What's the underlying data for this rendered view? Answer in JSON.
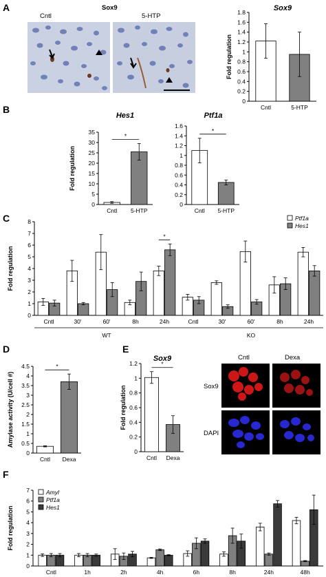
{
  "panels": {
    "A": "A",
    "B": "B",
    "C": "C",
    "D": "D",
    "E": "E",
    "F": "F"
  },
  "micrographs_A": {
    "title": "Sox9",
    "left_label": "Cntl",
    "right_label": "5-HTP"
  },
  "micrographs_E": {
    "col1": "Cntl",
    "col2": "Dexa",
    "row1": "Sox9",
    "row2": "DAPI"
  },
  "colors": {
    "white_bar": "#ffffff",
    "gray_bar": "#808080",
    "dark_bar": "#3a3a3a",
    "tissue_bg": "#c6cfe0",
    "nuclei": "#5a6fb0",
    "red_stain": "#e02020",
    "blue_stain": "#2a2ad8"
  },
  "chart_data": [
    {
      "id": "A",
      "type": "bar",
      "title": "Sox9",
      "ylabel": "Fold regulation",
      "ylim": [
        0,
        1.8
      ],
      "yticks": [
        "0",
        "0.2",
        "0.4",
        "0.6",
        "0.8",
        "1",
        "1.2",
        "1.4",
        "1.6",
        "1.8"
      ],
      "categories": [
        "Cntl",
        "5-HTP"
      ],
      "values": [
        1.22,
        0.95
      ],
      "errors": [
        0.35,
        0.45
      ],
      "fills": [
        "white",
        "gray"
      ]
    },
    {
      "id": "B1",
      "type": "bar",
      "title": "Hes1",
      "ylabel": "Fold regulation",
      "ylim": [
        0,
        35
      ],
      "yticks": [
        "0",
        "5",
        "10",
        "15",
        "20",
        "25",
        "30",
        "35"
      ],
      "categories": [
        "Cntl",
        "5-HTP"
      ],
      "values": [
        1,
        25.5
      ],
      "errors": [
        0.4,
        4
      ],
      "fills": [
        "white",
        "gray"
      ],
      "sig": "*"
    },
    {
      "id": "B2",
      "type": "bar",
      "title": "Ptf1a",
      "ylim": [
        0,
        1.6
      ],
      "yticks": [
        "0",
        "0.2",
        "0.4",
        "0.6",
        "0.8",
        "1",
        "1.2",
        "1.4",
        "1.6"
      ],
      "categories": [
        "Cntl",
        "5-HTP"
      ],
      "values": [
        1.1,
        0.45
      ],
      "errors": [
        0.25,
        0.05
      ],
      "fills": [
        "white",
        "gray"
      ],
      "sig": "*"
    },
    {
      "id": "C",
      "type": "bar",
      "ylabel": "Fold regulation",
      "ylim": [
        0,
        8
      ],
      "yticks": [
        "0",
        "1",
        "2",
        "3",
        "4",
        "5",
        "6",
        "7",
        "8"
      ],
      "categories": [
        "Cntl",
        "30'",
        "60'",
        "8h",
        "24h",
        "Cntl",
        "30'",
        "60'",
        "8h",
        "24h"
      ],
      "groups": [
        {
          "label": "WT",
          "span": [
            0,
            4
          ]
        },
        {
          "label": "KO",
          "span": [
            5,
            9
          ]
        }
      ],
      "series": [
        {
          "name": "Ptf1a",
          "values": [
            1.15,
            3.8,
            5.4,
            1.1,
            3.8,
            1.55,
            2.8,
            5.45,
            2.6,
            5.4
          ],
          "errors": [
            0.3,
            0.9,
            1.5,
            0.2,
            0.4,
            0.25,
            0.15,
            0.9,
            0.7,
            0.4
          ],
          "fill": "white"
        },
        {
          "name": "Hes1",
          "values": [
            1.05,
            1.0,
            2.2,
            2.9,
            5.6,
            1.3,
            0.75,
            1.15,
            2.7,
            3.8
          ],
          "errors": [
            0.25,
            0.1,
            0.6,
            0.8,
            0.5,
            0.3,
            0.15,
            0.2,
            0.5,
            0.45
          ],
          "fill": "gray"
        }
      ],
      "sig": {
        "index": 4,
        "text": "*"
      },
      "legend": "top-right"
    },
    {
      "id": "D",
      "type": "bar",
      "ylabel": "Amylase activity  (U/cell #)",
      "ylim": [
        0,
        4.5
      ],
      "yticks": [
        "0",
        "0.5",
        "1",
        "1.5",
        "2",
        "2.5",
        "3",
        "3.5",
        "4",
        "4.5"
      ],
      "categories": [
        "Cntl",
        "Dexa"
      ],
      "values": [
        0.35,
        3.7
      ],
      "errors": [
        0.03,
        0.4
      ],
      "fills": [
        "white",
        "gray"
      ],
      "sig": "*"
    },
    {
      "id": "E",
      "type": "bar",
      "title": "Sox9",
      "ylabel": "Fold regulation",
      "ylim": [
        0,
        1.2
      ],
      "yticks": [
        "0",
        "0.2",
        "0.4",
        "0.6",
        "0.8",
        "1",
        "1.2"
      ],
      "categories": [
        "Cntl",
        "Dexa"
      ],
      "values": [
        1.01,
        0.37
      ],
      "errors": [
        0.08,
        0.12
      ],
      "fills": [
        "white",
        "gray"
      ],
      "sig": "*"
    },
    {
      "id": "F",
      "type": "bar",
      "ylabel": "Fold regulation",
      "ylim": [
        0,
        7
      ],
      "yticks": [
        "0",
        "1",
        "2",
        "3",
        "4",
        "5",
        "6",
        "7"
      ],
      "categories": [
        "Cntl",
        "1h",
        "2h",
        "4h",
        "6h",
        "8h",
        "24h",
        "48h"
      ],
      "series": [
        {
          "name": "Amyl",
          "values": [
            1.0,
            1.0,
            1.1,
            0.75,
            1.15,
            1.1,
            3.6,
            4.2
          ],
          "errors": [
            0.12,
            0.15,
            0.5,
            0.05,
            0.25,
            0.2,
            0.35,
            0.3
          ],
          "fill": "white"
        },
        {
          "name": "Ptf1a",
          "values": [
            1.0,
            1.0,
            0.9,
            1.5,
            2.1,
            2.8,
            1.1,
            0.45
          ],
          "errors": [
            0.15,
            0.15,
            0.3,
            0.08,
            0.5,
            0.7,
            0.1,
            0.05
          ],
          "fill": "gray"
        },
        {
          "name": "Hes1",
          "values": [
            1.0,
            1.0,
            1.1,
            1.0,
            2.3,
            2.3,
            5.75,
            5.2
          ],
          "errors": [
            0.15,
            0.1,
            0.25,
            0.05,
            0.2,
            0.65,
            0.3,
            1.35
          ],
          "fill": "dark"
        }
      ],
      "legend": "top-left"
    }
  ]
}
